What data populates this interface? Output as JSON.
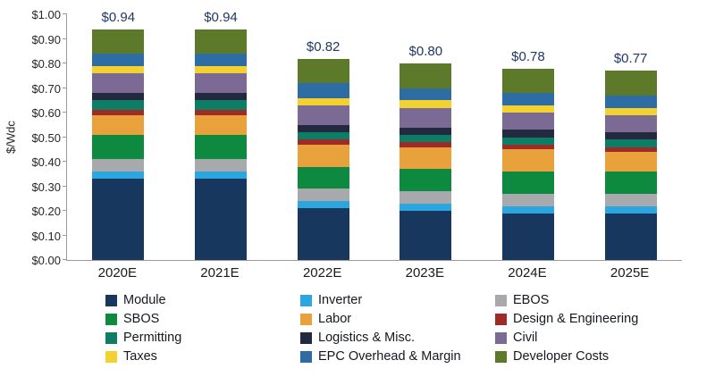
{
  "chart_data": {
    "type": "bar",
    "stacked": true,
    "title": "",
    "ylabel": "$/Wdc",
    "ylim": [
      0,
      1.0
    ],
    "ytick_step": 0.1,
    "ytick_labels": [
      "$0.00",
      "$0.10",
      "$0.20",
      "$0.30",
      "$0.40",
      "$0.50",
      "$0.60",
      "$0.70",
      "$0.80",
      "$0.90",
      "$1.00"
    ],
    "categories": [
      "2020E",
      "2021E",
      "2022E",
      "2023E",
      "2024E",
      "2025E"
    ],
    "totals": [
      "$0.94",
      "$0.94",
      "$0.82",
      "$0.80",
      "$0.78",
      "$0.77"
    ],
    "grid": false,
    "legend_position": "bottom",
    "series": [
      {
        "name": "Module",
        "color": "#17375E",
        "values": [
          0.33,
          0.33,
          0.21,
          0.2,
          0.19,
          0.19
        ]
      },
      {
        "name": "Inverter",
        "color": "#2BA6DE",
        "values": [
          0.03,
          0.03,
          0.03,
          0.03,
          0.03,
          0.03
        ]
      },
      {
        "name": "EBOS",
        "color": "#A7A9AC",
        "values": [
          0.05,
          0.05,
          0.05,
          0.05,
          0.05,
          0.05
        ]
      },
      {
        "name": "SBOS",
        "color": "#0E8A40",
        "values": [
          0.1,
          0.1,
          0.09,
          0.09,
          0.09,
          0.09
        ]
      },
      {
        "name": "Labor",
        "color": "#E9A23B",
        "values": [
          0.08,
          0.08,
          0.09,
          0.09,
          0.09,
          0.08
        ]
      },
      {
        "name": "Design & Engineering",
        "color": "#9E2B25",
        "values": [
          0.02,
          0.02,
          0.02,
          0.02,
          0.02,
          0.02
        ]
      },
      {
        "name": "Permitting",
        "color": "#0D7D66",
        "values": [
          0.04,
          0.04,
          0.03,
          0.03,
          0.03,
          0.03
        ]
      },
      {
        "name": "Logistics & Misc.",
        "color": "#23293E",
        "values": [
          0.03,
          0.03,
          0.03,
          0.03,
          0.03,
          0.03
        ]
      },
      {
        "name": "Civil",
        "color": "#7A6A94",
        "values": [
          0.08,
          0.08,
          0.08,
          0.08,
          0.07,
          0.07
        ]
      },
      {
        "name": "Taxes",
        "color": "#F2D130",
        "values": [
          0.03,
          0.03,
          0.03,
          0.03,
          0.03,
          0.03
        ]
      },
      {
        "name": "EPC Overhead & Margin",
        "color": "#2E6DA4",
        "values": [
          0.05,
          0.05,
          0.06,
          0.05,
          0.05,
          0.05
        ]
      },
      {
        "name": "Developer Costs",
        "color": "#5C7A29",
        "values": [
          0.1,
          0.1,
          0.1,
          0.1,
          0.1,
          0.1
        ]
      }
    ]
  }
}
